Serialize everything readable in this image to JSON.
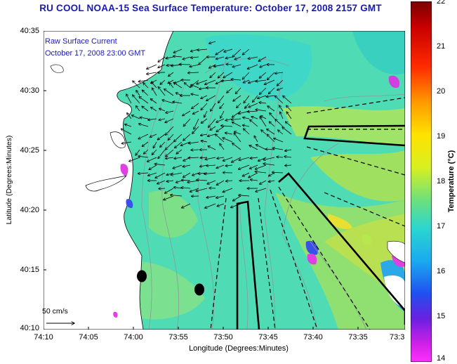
{
  "title": "RU COOL  NOAA-15  Sea Surface Temperature:  October 17, 2008 2157 GMT",
  "overlay": {
    "line1": "Raw Surface Current",
    "line2": "October 17, 2008 23:00 GMT"
  },
  "axes": {
    "x_title": "Longitude (Degrees:Minutes)",
    "y_title": "Latitude (Degrees:Minutes)",
    "x_ticks": [
      "74:10",
      "74:05",
      "74:00",
      "73:55",
      "73:50",
      "73:45",
      "73:40",
      "73:35",
      "73:3"
    ],
    "y_ticks": [
      "40:35",
      "40:30",
      "40:25",
      "40:20",
      "40:15",
      "40:10"
    ]
  },
  "scale_label": "50 cm/s",
  "colorbar": {
    "title": "Temperature (°C)",
    "ticks": [
      "22",
      "21",
      "20",
      "19",
      "18",
      "17",
      "16",
      "15",
      "14"
    ],
    "min": 14,
    "max": 22
  },
  "colors": {
    "title": "#1a1ab0",
    "water": "#4fdcb4",
    "land": "#ffffff"
  }
}
